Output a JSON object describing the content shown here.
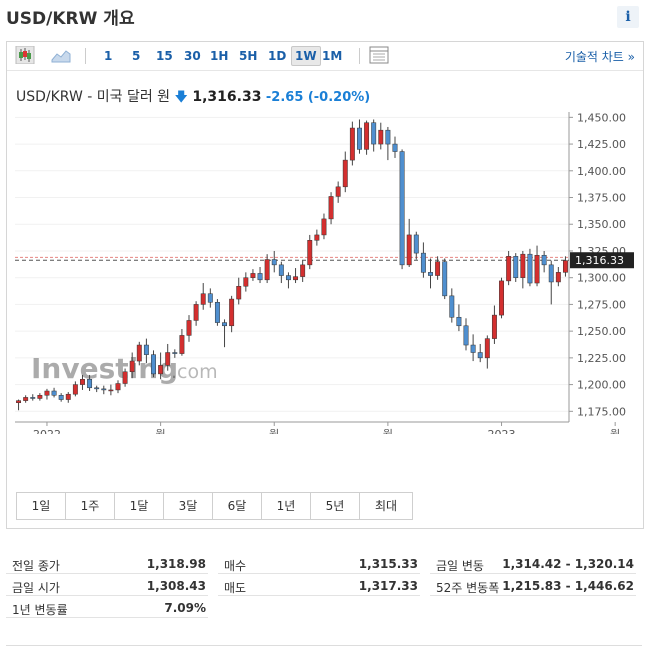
{
  "header": {
    "title": "USD/KRW 개요",
    "info_label": "i"
  },
  "toolbar": {
    "icons": [
      "candlestick-icon",
      "area-chart-icon",
      "table-icon"
    ],
    "periods": [
      {
        "label": "1",
        "active": false
      },
      {
        "label": "5",
        "active": false
      },
      {
        "label": "15",
        "active": false
      },
      {
        "label": "30",
        "active": false
      },
      {
        "label": "1H",
        "active": false
      },
      {
        "label": "5H",
        "active": false
      },
      {
        "label": "1D",
        "active": false
      },
      {
        "label": "1W",
        "active": true
      },
      {
        "label": "1M",
        "active": false
      }
    ],
    "tech_link": "기술적 차트 »"
  },
  "quote": {
    "name": "USD/KRW - 미국 달러 원",
    "price": "1,316.33",
    "change": "-2.65",
    "change_pct": "(-0.20%)",
    "price_tag": "1,316.33"
  },
  "watermark": {
    "brand": "Investing",
    "suffix": ".com"
  },
  "colors": {
    "up": "#d32f2f",
    "down": "#4f8fcf",
    "accent": "#1a5fa8",
    "tag": "#222222"
  },
  "chart_data": {
    "type": "candlestick",
    "interval": "weekly",
    "ylim": [
      1165,
      1455
    ],
    "y_ticks": [
      "1,450.00",
      "1,425.00",
      "1,400.00",
      "1,375.00",
      "1,350.00",
      "1,325.00",
      "1,300.00",
      "1,275.00",
      "1,250.00",
      "1,225.00",
      "1,200.00",
      "1,175.00"
    ],
    "y_tick_values": [
      1450,
      1425,
      1400,
      1375,
      1350,
      1325,
      1300,
      1275,
      1250,
      1225,
      1200,
      1175
    ],
    "x_labels": [
      {
        "label": "2022",
        "index": 4
      },
      {
        "label": "월",
        "index": 20
      },
      {
        "label": "월",
        "index": 36
      },
      {
        "label": "월",
        "index": 52
      },
      {
        "label": "2023",
        "index": 68
      },
      {
        "label": "월",
        "index": 84
      }
    ],
    "reference_line": 1318.98,
    "last_price": 1316.33,
    "candles": [
      [
        1183,
        1185,
        1176,
        1186
      ],
      [
        1185,
        1188,
        1183,
        1190
      ],
      [
        1188,
        1187,
        1185,
        1191
      ],
      [
        1187,
        1190,
        1185,
        1192
      ],
      [
        1190,
        1194,
        1186,
        1196
      ],
      [
        1194,
        1190,
        1188,
        1197
      ],
      [
        1190,
        1186,
        1184,
        1192
      ],
      [
        1186,
        1191,
        1183,
        1193
      ],
      [
        1191,
        1200,
        1189,
        1203
      ],
      [
        1200,
        1205,
        1195,
        1209
      ],
      [
        1205,
        1197,
        1194,
        1209
      ],
      [
        1197,
        1196,
        1193,
        1199
      ],
      [
        1196,
        1195,
        1191,
        1199
      ],
      [
        1195,
        1195,
        1190,
        1200
      ],
      [
        1195,
        1201,
        1192,
        1204
      ],
      [
        1201,
        1212,
        1198,
        1215
      ],
      [
        1212,
        1222,
        1206,
        1230
      ],
      [
        1222,
        1237,
        1218,
        1240
      ],
      [
        1237,
        1228,
        1220,
        1243
      ],
      [
        1228,
        1210,
        1207,
        1232
      ],
      [
        1210,
        1218,
        1205,
        1230
      ],
      [
        1218,
        1230,
        1213,
        1238
      ],
      [
        1230,
        1229,
        1225,
        1233
      ],
      [
        1229,
        1246,
        1227,
        1252
      ],
      [
        1246,
        1260,
        1240,
        1265
      ],
      [
        1260,
        1275,
        1255,
        1278
      ],
      [
        1275,
        1285,
        1270,
        1295
      ],
      [
        1285,
        1277,
        1272,
        1290
      ],
      [
        1277,
        1258,
        1255,
        1280
      ],
      [
        1258,
        1255,
        1235,
        1261
      ],
      [
        1255,
        1280,
        1249,
        1283
      ],
      [
        1280,
        1292,
        1275,
        1300
      ],
      [
        1292,
        1300,
        1287,
        1305
      ],
      [
        1300,
        1304,
        1297,
        1308
      ],
      [
        1304,
        1298,
        1295,
        1310
      ],
      [
        1298,
        1317,
        1295,
        1322
      ],
      [
        1317,
        1312,
        1305,
        1325
      ],
      [
        1312,
        1302,
        1295,
        1315
      ],
      [
        1302,
        1298,
        1290,
        1305
      ],
      [
        1298,
        1301,
        1295,
        1309
      ],
      [
        1301,
        1312,
        1296,
        1316
      ],
      [
        1312,
        1335,
        1308,
        1340
      ],
      [
        1335,
        1340,
        1330,
        1345
      ],
      [
        1340,
        1355,
        1336,
        1360
      ],
      [
        1355,
        1376,
        1350,
        1380
      ],
      [
        1376,
        1385,
        1370,
        1390
      ],
      [
        1385,
        1410,
        1380,
        1418
      ],
      [
        1410,
        1440,
        1405,
        1446
      ],
      [
        1440,
        1420,
        1416,
        1448
      ],
      [
        1420,
        1445,
        1415,
        1447
      ],
      [
        1445,
        1425,
        1418,
        1448
      ],
      [
        1425,
        1438,
        1420,
        1445
      ],
      [
        1438,
        1425,
        1410,
        1441
      ],
      [
        1425,
        1418,
        1412,
        1432
      ],
      [
        1418,
        1312,
        1308,
        1420
      ],
      [
        1312,
        1340,
        1310,
        1355
      ],
      [
        1340,
        1323,
        1317,
        1343
      ],
      [
        1323,
        1305,
        1300,
        1333
      ],
      [
        1305,
        1302,
        1290,
        1318
      ],
      [
        1302,
        1315,
        1298,
        1320
      ],
      [
        1315,
        1283,
        1280,
        1318
      ],
      [
        1283,
        1263,
        1258,
        1290
      ],
      [
        1263,
        1255,
        1250,
        1275
      ],
      [
        1255,
        1237,
        1232,
        1262
      ],
      [
        1237,
        1230,
        1222,
        1247
      ],
      [
        1230,
        1225,
        1221,
        1238
      ],
      [
        1225,
        1243,
        1215,
        1246
      ],
      [
        1243,
        1265,
        1238,
        1274
      ],
      [
        1265,
        1297,
        1262,
        1300
      ],
      [
        1297,
        1320,
        1293,
        1325
      ],
      [
        1320,
        1300,
        1296,
        1323
      ],
      [
        1300,
        1322,
        1290,
        1325
      ],
      [
        1322,
        1295,
        1292,
        1327
      ],
      [
        1295,
        1321,
        1292,
        1330
      ],
      [
        1321,
        1312,
        1305,
        1325
      ],
      [
        1312,
        1296,
        1275,
        1316
      ],
      [
        1296,
        1305,
        1292,
        1310
      ],
      [
        1305,
        1316,
        1301,
        1320
      ]
    ]
  },
  "ranges": [
    "1일",
    "1주",
    "1달",
    "3달",
    "6달",
    "1년",
    "5년",
    "최대"
  ],
  "stats": [
    {
      "label": "전일 종가",
      "value": "1,318.98"
    },
    {
      "label": "금일 시가",
      "value": "1,308.43"
    },
    {
      "label": "1년 변동률",
      "value": "7.09%"
    },
    {
      "label": "매수",
      "value": "1,315.33"
    },
    {
      "label": "매도",
      "value": "1,317.33"
    },
    {
      "label": "금일 변동",
      "value": "1,314.42 - 1,320.14"
    },
    {
      "label": "52주 변동폭",
      "value": "1,215.83 - 1,446.62"
    }
  ]
}
